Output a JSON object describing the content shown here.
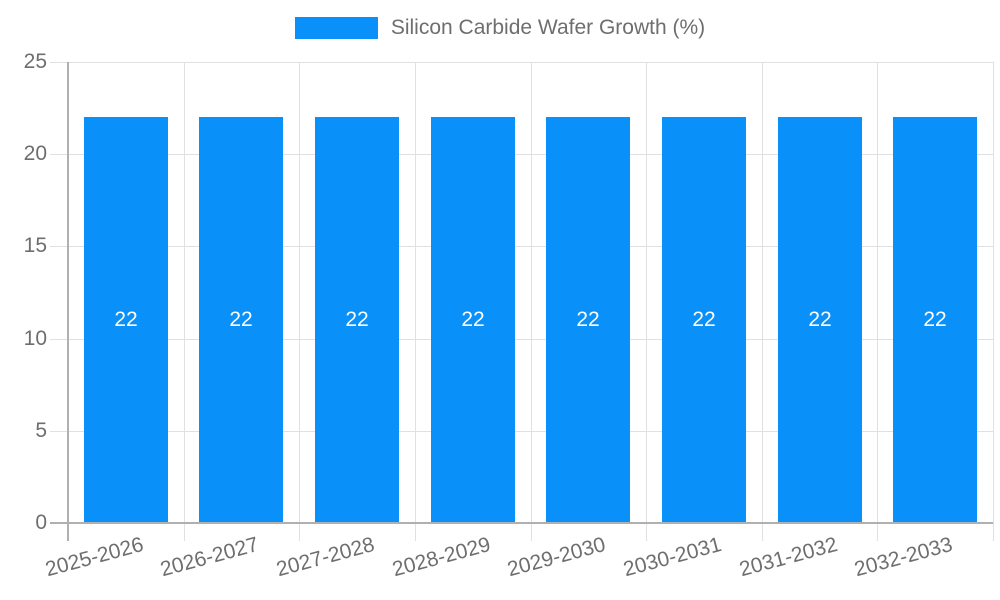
{
  "legend": {
    "label": "Silicon Carbide Wafer Growth (%)"
  },
  "chart_data": {
    "type": "bar",
    "title": "Silicon Carbide Wafer Growth (%)",
    "categories": [
      "2025-2026",
      "2026-2027",
      "2027-2028",
      "2028-2029",
      "2029-2030",
      "2030-2031",
      "2031-2032",
      "2032-2033"
    ],
    "values": [
      22,
      22,
      22,
      22,
      22,
      22,
      22,
      22
    ],
    "bar_labels": [
      "22",
      "22",
      "22",
      "22",
      "22",
      "22",
      "22",
      "22"
    ],
    "xlabel": "",
    "ylabel": "",
    "ylim": [
      0,
      25
    ],
    "yticks": [
      0,
      5,
      10,
      15,
      20,
      25
    ],
    "grid": true,
    "legend_position": "top",
    "colors": {
      "bar": "#0990F9",
      "grid": "#E0E0E0",
      "axis": "#B0B0B0",
      "text": "#6E6E6E",
      "bar_label": "#FFFFFF"
    }
  }
}
